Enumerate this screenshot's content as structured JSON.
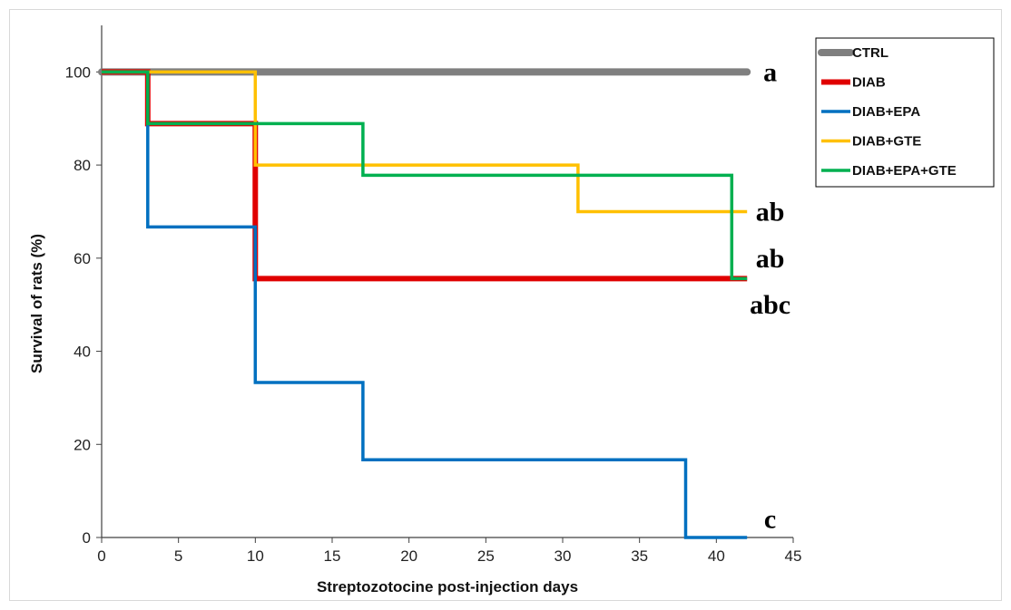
{
  "chart_data": {
    "type": "line",
    "step": true,
    "xlabel": "Streptozotocine post-injection days",
    "ylabel": "Survival of rats (%)",
    "xlim": [
      0,
      45
    ],
    "ylim": [
      0,
      110
    ],
    "xticks": [
      0,
      5,
      10,
      15,
      20,
      25,
      30,
      35,
      40,
      45
    ],
    "yticks": [
      0,
      20,
      40,
      60,
      80,
      100
    ],
    "grid": false,
    "legend_position": "top-right",
    "series": [
      {
        "name": "CTRL",
        "color": "#7f7f7f",
        "points": [
          [
            0,
            100
          ],
          [
            42,
            100
          ]
        ]
      },
      {
        "name": "DIAB",
        "color": "#e00000",
        "points": [
          [
            0,
            100
          ],
          [
            3,
            100
          ],
          [
            3,
            88.9
          ],
          [
            10,
            88.9
          ],
          [
            10,
            55.6
          ],
          [
            42,
            55.6
          ]
        ]
      },
      {
        "name": "DIAB+EPA",
        "color": "#0070c0",
        "points": [
          [
            0,
            100
          ],
          [
            3,
            100
          ],
          [
            3,
            66.7
          ],
          [
            10,
            66.7
          ],
          [
            10,
            33.3
          ],
          [
            17,
            33.3
          ],
          [
            17,
            16.7
          ],
          [
            38,
            16.7
          ],
          [
            38,
            0
          ],
          [
            42,
            0
          ]
        ]
      },
      {
        "name": "DIAB+GTE",
        "color": "#ffc000",
        "points": [
          [
            0,
            100
          ],
          [
            10,
            100
          ],
          [
            10,
            80
          ],
          [
            31,
            80
          ],
          [
            31,
            70
          ],
          [
            42,
            70
          ]
        ]
      },
      {
        "name": "DIAB+EPA+GTE",
        "color": "#00b050",
        "points": [
          [
            0,
            100
          ],
          [
            3,
            100
          ],
          [
            3,
            88.9
          ],
          [
            17,
            88.9
          ],
          [
            17,
            77.8
          ],
          [
            41,
            77.8
          ],
          [
            41,
            55.6
          ],
          [
            42,
            55.6
          ]
        ]
      }
    ],
    "annotations": [
      {
        "text": "a",
        "x": 43.5,
        "y": 100
      },
      {
        "text": "ab",
        "x": 43.5,
        "y": 70
      },
      {
        "text": "ab",
        "x": 43.5,
        "y": 60
      },
      {
        "text": "abc",
        "x": 43.5,
        "y": 50
      },
      {
        "text": "c",
        "x": 43.5,
        "y": 4
      }
    ]
  }
}
